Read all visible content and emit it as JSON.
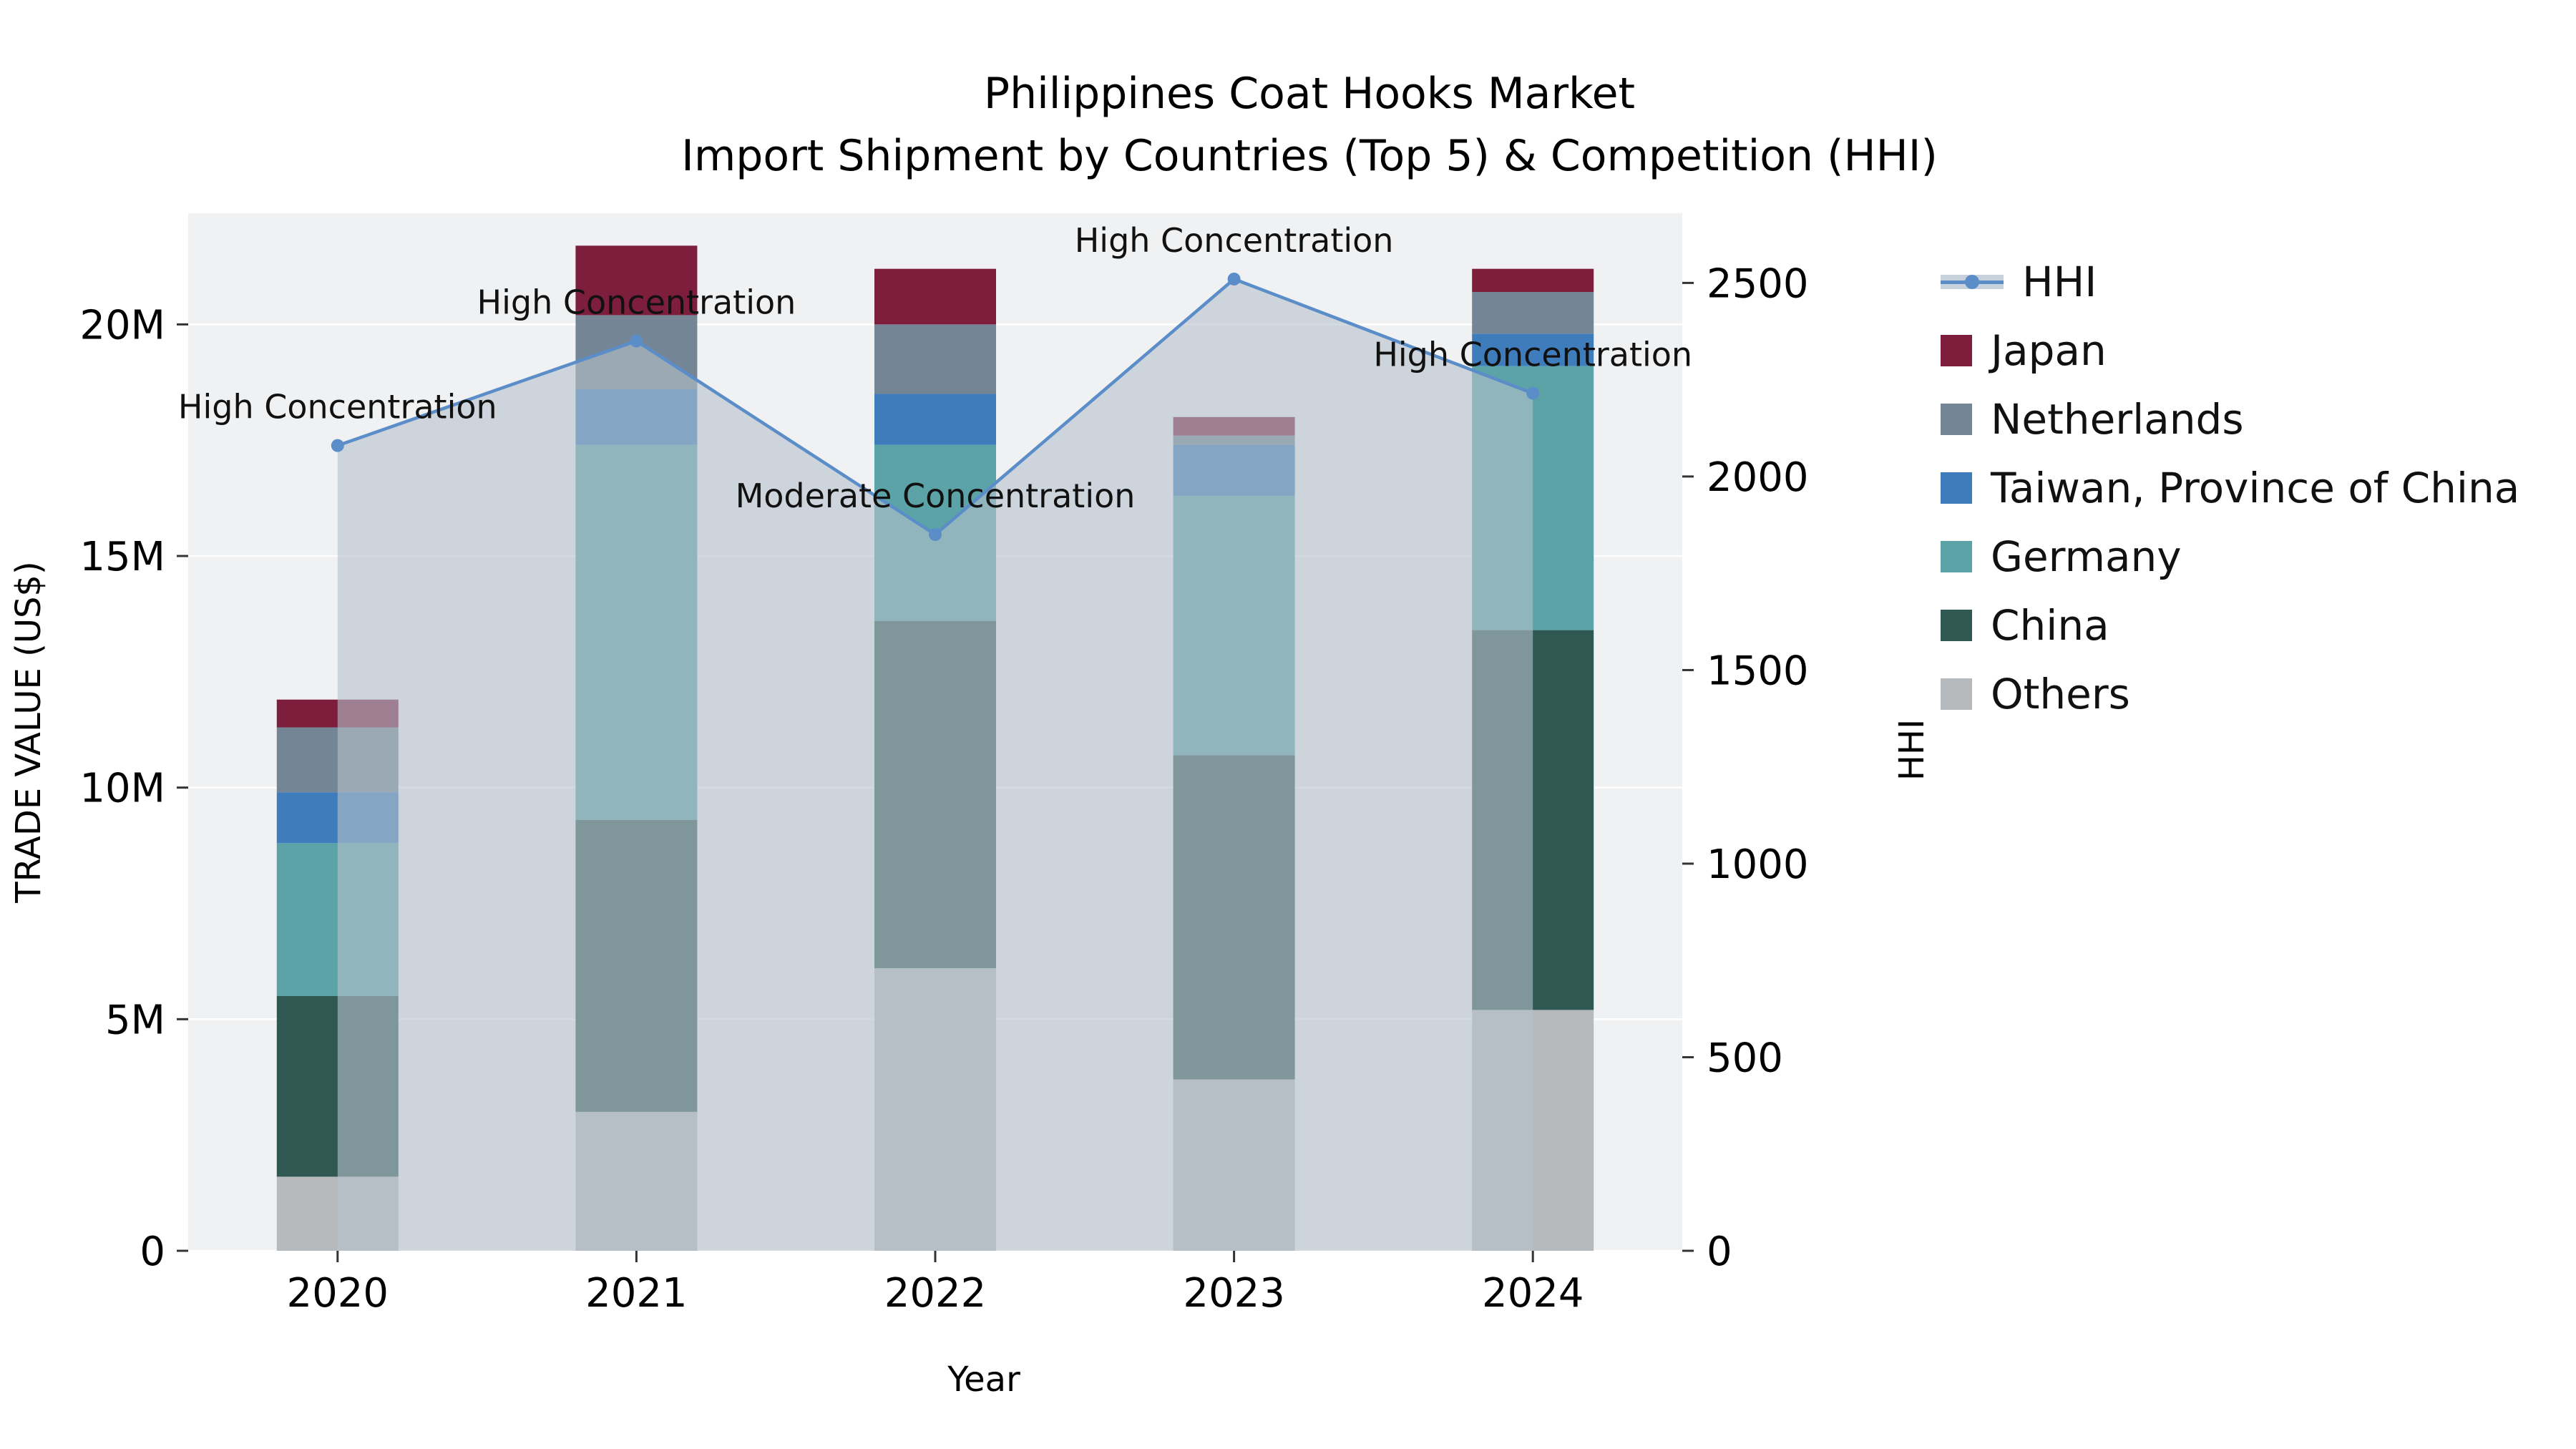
{
  "chart_data": {
    "type": "bar",
    "title": "Philippines Coat Hooks Market",
    "subtitle": "Import Shipment by Countries (Top 5) & Competition (HHI)",
    "xlabel": "Year",
    "ylabel_left": "TRADE VALUE (US$)",
    "ylabel_right": "HHI",
    "plot_bg": "#f0f1f2",
    "grid_color": "#ffffff",
    "categories": [
      "2020",
      "2021",
      "2022",
      "2023",
      "2024"
    ],
    "stack_note": "series listed bottom to top; values are trade value in US$",
    "series": [
      {
        "name": "Others",
        "color": "#b7babd",
        "values": [
          1600000,
          3000000,
          6100000,
          3700000,
          5200000
        ]
      },
      {
        "name": "China",
        "color": "#2e5851",
        "values": [
          3900000,
          6300000,
          7500000,
          7000000,
          8200000
        ]
      },
      {
        "name": "Germany",
        "color": "#5ba3a6",
        "values": [
          3300000,
          8100000,
          3800000,
          5600000,
          5700000
        ]
      },
      {
        "name": "Taiwan, Province of China",
        "color": "#3e7cbc",
        "values": [
          1100000,
          1200000,
          1100000,
          1100000,
          700000
        ]
      },
      {
        "name": "Netherlands",
        "color": "#748595",
        "values": [
          1400000,
          1600000,
          1500000,
          200000,
          900000
        ]
      },
      {
        "name": "Japan",
        "color": "#7e1e3d",
        "values": [
          600000,
          1500000,
          1200000,
          400000,
          500000
        ]
      }
    ],
    "line": {
      "name": "HHI",
      "axis": "right",
      "color": "#5b8ec9",
      "area_fill": "rgba(181,193,204,0.6)",
      "values": [
        2080,
        2350,
        1850,
        2510,
        2215
      ]
    },
    "annotations": [
      "High Concentration",
      "High Concentration",
      "Moderate Concentration",
      "High Concentration",
      "High Concentration"
    ],
    "left_axis": {
      "max": 22400000,
      "ticks": [
        {
          "value": 0,
          "label": "0"
        },
        {
          "value": 5000000,
          "label": "5M"
        },
        {
          "value": 10000000,
          "label": "10M"
        },
        {
          "value": 15000000,
          "label": "15M"
        },
        {
          "value": 20000000,
          "label": "20M"
        }
      ]
    },
    "right_axis": {
      "max": 2680,
      "ticks": [
        {
          "value": 0,
          "label": "0"
        },
        {
          "value": 500,
          "label": "500"
        },
        {
          "value": 1000,
          "label": "1000"
        },
        {
          "value": 1500,
          "label": "1500"
        },
        {
          "value": 2000,
          "label": "2000"
        },
        {
          "value": 2500,
          "label": "2500"
        }
      ]
    }
  }
}
